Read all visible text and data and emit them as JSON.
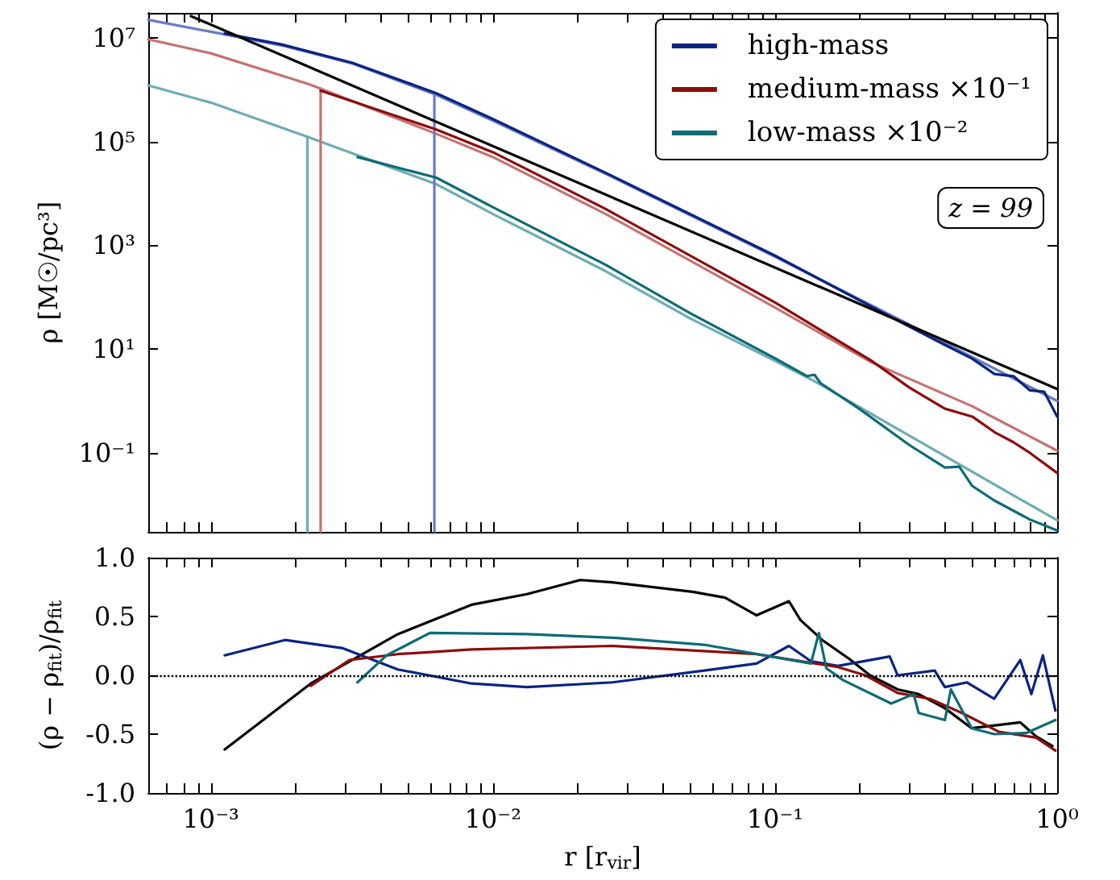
{
  "chart_data": [
    {
      "type": "line",
      "ylabel": "ρ [M☉/pc³]",
      "log": "xy",
      "marker": "none",
      "legend": "top right",
      "tick_labels": "y",
      "annotations": [
        "z = 99"
      ],
      "xlim": [
        0.0006,
        1
      ],
      "ylim": [
        0.003,
        30000000
      ],
      "xticks": [
        {
          "value": 0.0007,
          "label": null
        },
        {
          "value": 0.0008,
          "label": null
        },
        {
          "value": 0.0009,
          "label": null
        },
        {
          "value": 0.001,
          "label": null
        },
        {
          "value": 0.002,
          "label": null
        },
        {
          "value": 0.003,
          "label": null
        },
        {
          "value": 0.004,
          "label": null
        },
        {
          "value": 0.005,
          "label": null
        },
        {
          "value": 0.006,
          "label": null
        },
        {
          "value": 0.007,
          "label": null
        },
        {
          "value": 0.008,
          "label": null
        },
        {
          "value": 0.009,
          "label": null
        },
        {
          "value": 0.01,
          "label": null
        },
        {
          "value": 0.02,
          "label": null
        },
        {
          "value": 0.03,
          "label": null
        },
        {
          "value": 0.04,
          "label": null
        },
        {
          "value": 0.05,
          "label": null
        },
        {
          "value": 0.06,
          "label": null
        },
        {
          "value": 0.07,
          "label": null
        },
        {
          "value": 0.08,
          "label": null
        },
        {
          "value": 0.09,
          "label": null
        },
        {
          "value": 0.1,
          "label": null
        },
        {
          "value": 0.2,
          "label": null
        },
        {
          "value": 0.3,
          "label": null
        },
        {
          "value": 0.4,
          "label": null
        },
        {
          "value": 0.5,
          "label": null
        },
        {
          "value": 0.6,
          "label": null
        },
        {
          "value": 0.7,
          "label": null
        },
        {
          "value": 0.8,
          "label": null
        },
        {
          "value": 0.9,
          "label": null
        },
        {
          "value": 1,
          "label": null
        }
      ],
      "yticks": [
        {
          "value": 0.1,
          "label": "10⁻¹"
        },
        {
          "value": 10,
          "label": "10¹"
        },
        {
          "value": 1000,
          "label": "10³"
        },
        {
          "value": 100000,
          "label": "10⁵"
        },
        {
          "value": 10000000,
          "label": "10⁷"
        }
      ],
      "series": [
        {
          "color": "#6b7cc3",
          "x": [
            0.0006,
            0.001,
            0.00178,
            0.00316,
            0.0063,
            0.01,
            0.0263,
            0.1,
            0.282,
            1
          ],
          "values": [
            22000000,
            13000000,
            7100000,
            3200000,
            790000,
            250000,
            21000,
            600,
            35,
            1.0
          ]
        },
        {
          "color": "#c47373",
          "x": [
            0.0006,
            0.001,
            0.00224,
            0.0063,
            0.01,
            0.0251,
            0.1,
            0.219,
            0.5,
            1
          ],
          "values": [
            9300000,
            5000000,
            1260000,
            140000,
            50000,
            4000,
            63,
            5.6,
            0.79,
            0.11
          ]
        },
        {
          "color": "#6fadb2",
          "x": [
            0.0006,
            0.001,
            0.0022,
            0.0063,
            0.01,
            0.0251,
            0.05,
            0.1,
            0.138,
            0.316,
            1
          ],
          "values": [
            1200000,
            560000,
            123000,
            15000,
            4000,
            316,
            39,
            5.9,
            2.4,
            0.18,
            0.005
          ]
        },
        {
          "color": "#6b7cc3",
          "x": [
            0.0062,
            0.0062
          ],
          "values": [
            790000,
            0.003
          ]
        },
        {
          "color": "#c47373",
          "x": [
            0.00245,
            0.00245
          ],
          "values": [
            1050000,
            0.003
          ]
        },
        {
          "color": "#6fadb2",
          "x": [
            0.0022,
            0.0022
          ],
          "values": [
            123000,
            0.003
          ]
        },
        {
          "name": "high-mass",
          "color": "#0b2480",
          "x": [
            0.00112,
            0.00178,
            0.00316,
            0.0063,
            0.01,
            0.0263,
            0.1,
            0.282,
            0.4,
            0.5,
            0.6,
            0.7,
            0.8,
            0.9,
            1
          ],
          "values": [
            12000000,
            7400000,
            3300000,
            850000,
            270000,
            22000,
            630,
            32,
            12,
            6.5,
            3.3,
            3.0,
            1.6,
            1.5,
            0.5
          ]
        },
        {
          "name": "medium-mass ×10⁻¹",
          "color": "#8c0d0d",
          "x": [
            0.00245,
            0.0063,
            0.01,
            0.0251,
            0.1,
            0.219,
            0.3,
            0.4,
            0.5,
            0.6,
            0.7,
            0.8,
            1
          ],
          "values": [
            950000,
            170000,
            62000,
            5000,
            79,
            6.0,
            1.8,
            0.71,
            0.5,
            0.25,
            0.16,
            0.1,
            0.041
          ]
        },
        {
          "name": "low-mass ×10⁻²",
          "color": "#0e6b75",
          "x": [
            0.00331,
            0.0063,
            0.01,
            0.0251,
            0.05,
            0.1,
            0.13,
            0.138,
            0.145,
            0.2,
            0.3,
            0.4,
            0.45,
            0.5,
            0.6,
            0.8,
            1
          ],
          "values": [
            50000,
            20000,
            5400,
            420,
            49,
            6.6,
            3.0,
            3.2,
            2.2,
            0.69,
            0.14,
            0.052,
            0.054,
            0.023,
            0.012,
            0.0052,
            0.0032
          ]
        },
        {
          "color": "#000000",
          "x": [
            0.00085,
            1
          ],
          "values": [
            26000000,
            1.7
          ]
        }
      ]
    },
    {
      "type": "line",
      "xlabel": "r [r$_{vir}$]",
      "ylabel": "(ρ − ρ$_{fit}$)/ρ$_{fit}$",
      "log": "x",
      "marker": "none",
      "xlim": [
        0.0006,
        1
      ],
      "ylim": [
        -1,
        1
      ],
      "xticks": [
        {
          "value": 0.0007,
          "label": null
        },
        {
          "value": 0.0008,
          "label": null
        },
        {
          "value": 0.0009,
          "label": null
        },
        {
          "value": 0.001,
          "label": "10⁻³"
        },
        {
          "value": 0.002,
          "label": null
        },
        {
          "value": 0.003,
          "label": null
        },
        {
          "value": 0.004,
          "label": null
        },
        {
          "value": 0.005,
          "label": null
        },
        {
          "value": 0.006,
          "label": null
        },
        {
          "value": 0.007,
          "label": null
        },
        {
          "value": 0.008,
          "label": null
        },
        {
          "value": 0.009,
          "label": null
        },
        {
          "value": 0.01,
          "label": "10⁻²"
        },
        {
          "value": 0.02,
          "label": null
        },
        {
          "value": 0.03,
          "label": null
        },
        {
          "value": 0.04,
          "label": null
        },
        {
          "value": 0.05,
          "label": null
        },
        {
          "value": 0.06,
          "label": null
        },
        {
          "value": 0.07,
          "label": null
        },
        {
          "value": 0.08,
          "label": null
        },
        {
          "value": 0.09,
          "label": null
        },
        {
          "value": 0.1,
          "label": "10⁻¹"
        },
        {
          "value": 0.2,
          "label": null
        },
        {
          "value": 0.3,
          "label": null
        },
        {
          "value": 0.4,
          "label": null
        },
        {
          "value": 0.5,
          "label": null
        },
        {
          "value": 0.6,
          "label": null
        },
        {
          "value": 0.7,
          "label": null
        },
        {
          "value": 0.8,
          "label": null
        },
        {
          "value": 0.9,
          "label": null
        },
        {
          "value": 1,
          "label": "10⁰"
        }
      ],
      "yticks": [
        {
          "value": -1,
          "label": "-1.0"
        },
        {
          "value": -0.5,
          "label": "-0.5"
        },
        {
          "value": 0,
          "label": "0.0"
        },
        {
          "value": 0.5,
          "label": "0.5"
        },
        {
          "value": 1,
          "label": "1.0"
        }
      ],
      "ref_lines": [
        {
          "axis": "y",
          "value": 0,
          "color": "#000000",
          "line_style": "dotted"
        }
      ],
      "series": [
        {
          "color": "#000000",
          "x": [
            0.00112,
            0.00226,
            0.0046,
            0.0084,
            0.0132,
            0.0204,
            0.0265,
            0.051,
            0.0665,
            0.086,
            0.112,
            0.123,
            0.147,
            0.183,
            0.217,
            0.272,
            0.323,
            0.4,
            0.498,
            0.74,
            0.843,
            0.962
          ],
          "values": [
            -0.63,
            -0.07,
            0.35,
            0.6,
            0.69,
            0.81,
            0.79,
            0.71,
            0.66,
            0.51,
            0.63,
            0.47,
            0.3,
            0.14,
            0.0,
            -0.12,
            -0.16,
            -0.28,
            -0.45,
            -0.4,
            -0.52,
            -0.6
          ]
        },
        {
          "color": "#0b2480",
          "x": [
            0.00112,
            0.00183,
            0.00294,
            0.0046,
            0.0084,
            0.0132,
            0.0265,
            0.056,
            0.086,
            0.112,
            0.134,
            0.167,
            0.255,
            0.272,
            0.368,
            0.4,
            0.479,
            0.598,
            0.74,
            0.81,
            0.89,
            0.986
          ],
          "values": [
            0.17,
            0.3,
            0.23,
            0.05,
            -0.07,
            -0.1,
            -0.06,
            0.04,
            0.1,
            0.25,
            0.12,
            0.08,
            0.16,
            0.0,
            0.04,
            -0.1,
            -0.06,
            -0.2,
            0.13,
            -0.16,
            0.17,
            -0.3
          ]
        },
        {
          "color": "#8c0d0d",
          "x": [
            0.00226,
            0.0031,
            0.0046,
            0.0084,
            0.0265,
            0.086,
            0.167,
            0.209,
            0.272,
            0.354,
            0.46,
            0.622,
            0.843,
            0.986
          ],
          "values": [
            -0.09,
            0.13,
            0.18,
            0.22,
            0.25,
            0.18,
            0.07,
            0.0,
            -0.15,
            -0.2,
            -0.32,
            -0.48,
            -0.53,
            -0.64
          ]
        },
        {
          "color": "#0e6b75",
          "x": [
            0.00331,
            0.0042,
            0.00598,
            0.0132,
            0.0265,
            0.056,
            0.108,
            0.134,
            0.143,
            0.152,
            0.174,
            0.258,
            0.31,
            0.323,
            0.4,
            0.42,
            0.498,
            0.598,
            0.778,
            0.986
          ],
          "values": [
            -0.06,
            0.17,
            0.36,
            0.35,
            0.32,
            0.26,
            0.14,
            0.1,
            0.36,
            0.06,
            -0.04,
            -0.24,
            -0.16,
            -0.32,
            -0.38,
            -0.12,
            -0.45,
            -0.5,
            -0.49,
            -0.38
          ]
        }
      ]
    }
  ]
}
